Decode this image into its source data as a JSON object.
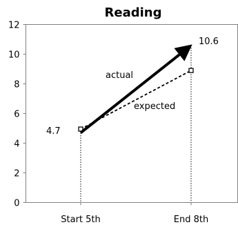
{
  "chart_data": {
    "type": "line",
    "title": "Reading",
    "xlabel": "",
    "ylabel": "",
    "categories": [
      "Start 5th",
      "End 8th"
    ],
    "ylim": [
      0,
      12
    ],
    "yticks": [
      0,
      2,
      4,
      6,
      8,
      10,
      12
    ],
    "grid": false,
    "series": [
      {
        "name": "actual",
        "values": [
          4.7,
          10.6
        ],
        "style": "thick solid arrow",
        "color": "#000000"
      },
      {
        "name": "expected",
        "values": [
          4.95,
          8.9
        ],
        "style": "dashed",
        "color": "#000000"
      }
    ],
    "data_labels": {
      "start": "4.7",
      "end": "10.6"
    },
    "annotations": {
      "actual": "actual",
      "expected": "expected"
    }
  }
}
